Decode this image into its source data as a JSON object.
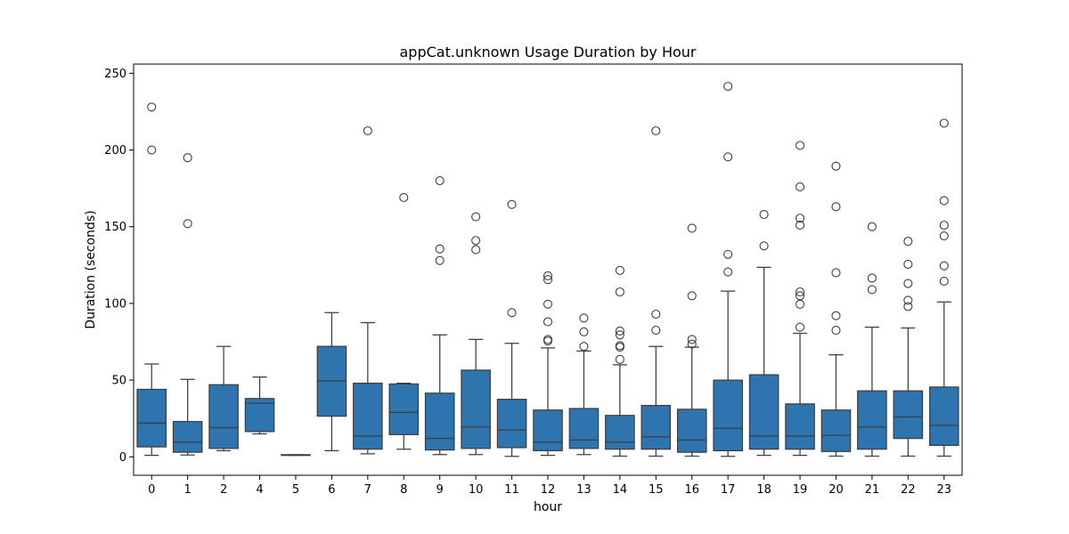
{
  "chart_data": {
    "type": "box",
    "title": "appCat.unknown Usage Duration by Hour",
    "xlabel": "hour",
    "ylabel": "Duration (seconds)",
    "ylim": [
      -12,
      256
    ],
    "yticks": [
      0,
      50,
      100,
      150,
      200,
      250
    ],
    "box_color": "#2e75b0",
    "categories": [
      "0",
      "1",
      "2",
      "4",
      "5",
      "6",
      "7",
      "8",
      "9",
      "10",
      "11",
      "12",
      "13",
      "14",
      "15",
      "16",
      "17",
      "18",
      "19",
      "20",
      "21",
      "22",
      "23"
    ],
    "boxes": [
      {
        "hour": "0",
        "whislo": 1,
        "q1": 6.5,
        "med": 22,
        "q3": 44,
        "whishi": 60.5,
        "fliers": [
          200,
          228
        ]
      },
      {
        "hour": "1",
        "whislo": 1.2,
        "q1": 3,
        "med": 9.5,
        "q3": 23,
        "whishi": 50.5,
        "fliers": [
          152,
          195
        ]
      },
      {
        "hour": "2",
        "whislo": 4,
        "q1": 5.5,
        "med": 19,
        "q3": 47,
        "whishi": 72,
        "fliers": []
      },
      {
        "hour": "4",
        "whislo": 15,
        "q1": 16.5,
        "med": 35,
        "q3": 38,
        "whishi": 52,
        "fliers": []
      },
      {
        "hour": "5",
        "whislo": 1,
        "q1": 1,
        "med": 1.2,
        "q3": 1.4,
        "whishi": 1.4,
        "fliers": []
      },
      {
        "hour": "6",
        "whislo": 4,
        "q1": 26.5,
        "med": 49.5,
        "q3": 72,
        "whishi": 94,
        "fliers": []
      },
      {
        "hour": "7",
        "whislo": 2,
        "q1": 5,
        "med": 13.5,
        "q3": 48,
        "whishi": 87.5,
        "fliers": [
          212.5
        ]
      },
      {
        "hour": "8",
        "whislo": 5,
        "q1": 14.5,
        "med": 29,
        "q3": 47.5,
        "whishi": 48,
        "fliers": [
          169
        ]
      },
      {
        "hour": "9",
        "whislo": 1.5,
        "q1": 4.5,
        "med": 12,
        "q3": 41.5,
        "whishi": 79.5,
        "fliers": [
          128,
          135.5,
          180
        ]
      },
      {
        "hour": "10",
        "whislo": 1.5,
        "q1": 5.5,
        "med": 19.5,
        "q3": 56.5,
        "whishi": 76.5,
        "fliers": [
          135,
          141,
          156.5
        ]
      },
      {
        "hour": "11",
        "whislo": 0.3,
        "q1": 6,
        "med": 17.5,
        "q3": 37.5,
        "whishi": 74,
        "fliers": [
          94,
          164.5
        ]
      },
      {
        "hour": "12",
        "whislo": 1,
        "q1": 4,
        "med": 9.5,
        "q3": 30.5,
        "whishi": 71,
        "fliers": [
          75.5,
          76.5,
          88,
          99.5,
          115.5,
          118
        ]
      },
      {
        "hour": "13",
        "whislo": 1.5,
        "q1": 5.5,
        "med": 11,
        "q3": 31.5,
        "whishi": 69,
        "fliers": [
          72,
          81.5,
          90.5
        ]
      },
      {
        "hour": "14",
        "whislo": 0.5,
        "q1": 5,
        "med": 9.5,
        "q3": 27,
        "whishi": 60,
        "fliers": [
          63.5,
          71.5,
          72.5,
          79.5,
          82,
          107.5,
          121.5
        ]
      },
      {
        "hour": "15",
        "whislo": 0.5,
        "q1": 5,
        "med": 13,
        "q3": 33.5,
        "whishi": 72,
        "fliers": [
          82.5,
          93,
          212.5
        ]
      },
      {
        "hour": "16",
        "whislo": 0.5,
        "q1": 3,
        "med": 11,
        "q3": 31,
        "whishi": 71.5,
        "fliers": [
          73.5,
          76.5,
          105,
          149
        ]
      },
      {
        "hour": "17",
        "whislo": 0.3,
        "q1": 4,
        "med": 18.5,
        "q3": 50,
        "whishi": 108,
        "fliers": [
          120.5,
          132,
          195.5,
          241.5
        ]
      },
      {
        "hour": "18",
        "whislo": 1,
        "q1": 5,
        "med": 13.5,
        "q3": 53.5,
        "whishi": 123.5,
        "fliers": [
          137.5,
          158
        ]
      },
      {
        "hour": "19",
        "whislo": 1,
        "q1": 5,
        "med": 13.5,
        "q3": 34.5,
        "whishi": 80.5,
        "fliers": [
          84.5,
          99.5,
          105,
          107.5,
          151,
          155.5,
          176,
          203
        ]
      },
      {
        "hour": "20",
        "whislo": 0.5,
        "q1": 3.5,
        "med": 14,
        "q3": 30.5,
        "whishi": 66.5,
        "fliers": [
          82.5,
          92,
          120,
          163,
          189.5
        ]
      },
      {
        "hour": "21",
        "whislo": 0.5,
        "q1": 5,
        "med": 19.5,
        "q3": 43,
        "whishi": 84.5,
        "fliers": [
          109,
          116.5,
          150
        ]
      },
      {
        "hour": "22",
        "whislo": 0.5,
        "q1": 12,
        "med": 26,
        "q3": 43,
        "whishi": 84,
        "fliers": [
          98,
          102,
          113,
          125.5,
          140.5
        ]
      },
      {
        "hour": "23",
        "whislo": 0.5,
        "q1": 7.5,
        "med": 20.5,
        "q3": 45.5,
        "whishi": 101,
        "fliers": [
          114.5,
          124.5,
          144,
          151,
          167,
          217.5
        ]
      }
    ]
  }
}
